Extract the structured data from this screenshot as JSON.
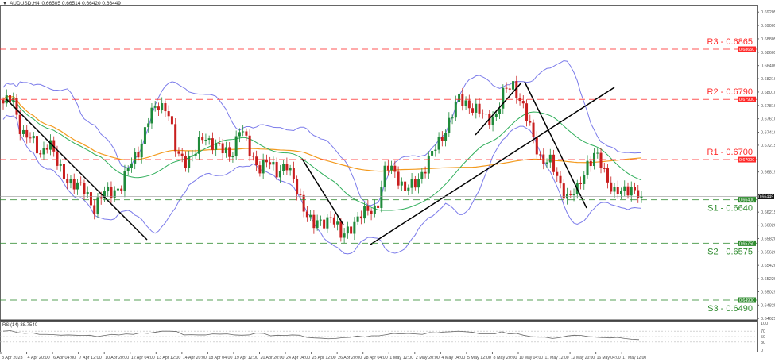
{
  "header": {
    "symbol": "AUDUSD,H4",
    "ohlc": "0.66505 0.66514 0.66420 0.66449"
  },
  "rsi": {
    "label": "RSI(14) 38.7540",
    "levels": [
      "100",
      "70",
      "50",
      "30",
      "0"
    ],
    "values": [
      70,
      72,
      65,
      62,
      64,
      58,
      58,
      57,
      55,
      56,
      55,
      54,
      55,
      50,
      54,
      58,
      56,
      60,
      58,
      64,
      62,
      66,
      70,
      70,
      69,
      56,
      57,
      56,
      56,
      60,
      59,
      60,
      56,
      55,
      56,
      63,
      62,
      53,
      55,
      54,
      56,
      55,
      47,
      45,
      44,
      42,
      43,
      46,
      47,
      52,
      48,
      53,
      53,
      57,
      62,
      60,
      62,
      60,
      58,
      65,
      64,
      67,
      68,
      70,
      68,
      66,
      60,
      61,
      60,
      68,
      60,
      62,
      55,
      50,
      48,
      48,
      43,
      46,
      52,
      55,
      54,
      50,
      48,
      46,
      45,
      47,
      43,
      40,
      38.75
    ]
  },
  "chart_data": {
    "type": "candlestick",
    "title": "AUDUSD,H4",
    "ylim": [
      0.6455,
      0.6935
    ],
    "y_ticks": [
      "0.69205",
      "0.69005",
      "0.68805",
      "0.68605",
      "0.68405",
      "0.68210",
      "0.68010",
      "0.67810",
      "0.67610",
      "0.67410",
      "0.67215",
      "0.66815",
      "0.66215",
      "0.66020",
      "0.65820",
      "0.65620",
      "0.65420",
      "0.65220",
      "0.65025",
      "0.64825",
      "0.64625"
    ],
    "y_tick_values": [
      0.69205,
      0.69005,
      0.68805,
      0.68605,
      0.68405,
      0.6821,
      0.6801,
      0.6781,
      0.6761,
      0.6741,
      0.67215,
      0.66815,
      0.66215,
      0.6602,
      0.6582,
      0.6562,
      0.6542,
      0.6522,
      0.65025,
      0.64825,
      0.64625
    ],
    "x_labels": [
      "3 Apr 2023",
      "4 Apr 20:00",
      "6 Apr 04:00",
      "7 Apr 12:00",
      "10 Apr 20:00",
      "12 Apr 04:00",
      "13 Apr 12:00",
      "14 Apr 20:00",
      "18 Apr 04:00",
      "19 Apr 12:00",
      "20 Apr 20:00",
      "24 Apr 04:00",
      "25 Apr 12:00",
      "26 Apr 20:00",
      "28 Apr 04:00",
      "1 May 12:00",
      "2 May 20:00",
      "4 May 04:00",
      "5 May 12:00",
      "8 May 20:00",
      "10 May 04:00",
      "11 May 12:00",
      "12 May 20:00",
      "16 May 04:00",
      "17 May 12:00"
    ],
    "close_anchors": [
      0.6784,
      0.679,
      0.6743,
      0.6731,
      0.6707,
      0.6731,
      0.6689,
      0.6672,
      0.666,
      0.6654,
      0.6628,
      0.6648,
      0.6654,
      0.666,
      0.6695,
      0.6719,
      0.6761,
      0.6784,
      0.6778,
      0.6707,
      0.6701,
      0.6707,
      0.6737,
      0.6725,
      0.6713,
      0.6707,
      0.6749,
      0.6713,
      0.6689,
      0.6695,
      0.6683,
      0.6695,
      0.666,
      0.663,
      0.66,
      0.6606,
      0.6618,
      0.6583,
      0.66,
      0.6612,
      0.6624,
      0.663,
      0.6689,
      0.6683,
      0.6654,
      0.666,
      0.6683,
      0.6707,
      0.6731,
      0.6761,
      0.679,
      0.6784,
      0.6772,
      0.6761,
      0.6766,
      0.6802,
      0.6814,
      0.6778,
      0.6737,
      0.6701,
      0.6695,
      0.6666,
      0.6642,
      0.6654,
      0.6695,
      0.6707,
      0.6678,
      0.6654,
      0.6648,
      0.666,
      0.6648
    ],
    "last_price": "0.66449",
    "levels": [
      {
        "label": "R3 - 0.6865",
        "value": 0.6865,
        "tag": "0.68650",
        "color": "#ff2a2a"
      },
      {
        "label": "R2 - 0.6790",
        "value": 0.679,
        "tag": "0.67900",
        "color": "#ff2a2a"
      },
      {
        "label": "R1 - 0.6700",
        "value": 0.67,
        "tag": "0.67000",
        "color": "#ff2a2a"
      },
      {
        "label": "S1 - 0.6640",
        "value": 0.664,
        "tag": "0.66400",
        "color": "#2e8b2e"
      },
      {
        "label": "S2 - 0.6575",
        "value": 0.6575,
        "tag": "0.65750",
        "color": "#2e8b2e"
      },
      {
        "label": "S3 - 0.6490",
        "value": 0.649,
        "tag": "0.64900",
        "color": "#2e8b2e"
      }
    ],
    "colors": {
      "bull": "#1f8a3a",
      "bear": "#c81e1e",
      "bands": "#7b7bea",
      "ma_fast": "#2fae5a",
      "ma_slow": "#f39a1e"
    }
  }
}
